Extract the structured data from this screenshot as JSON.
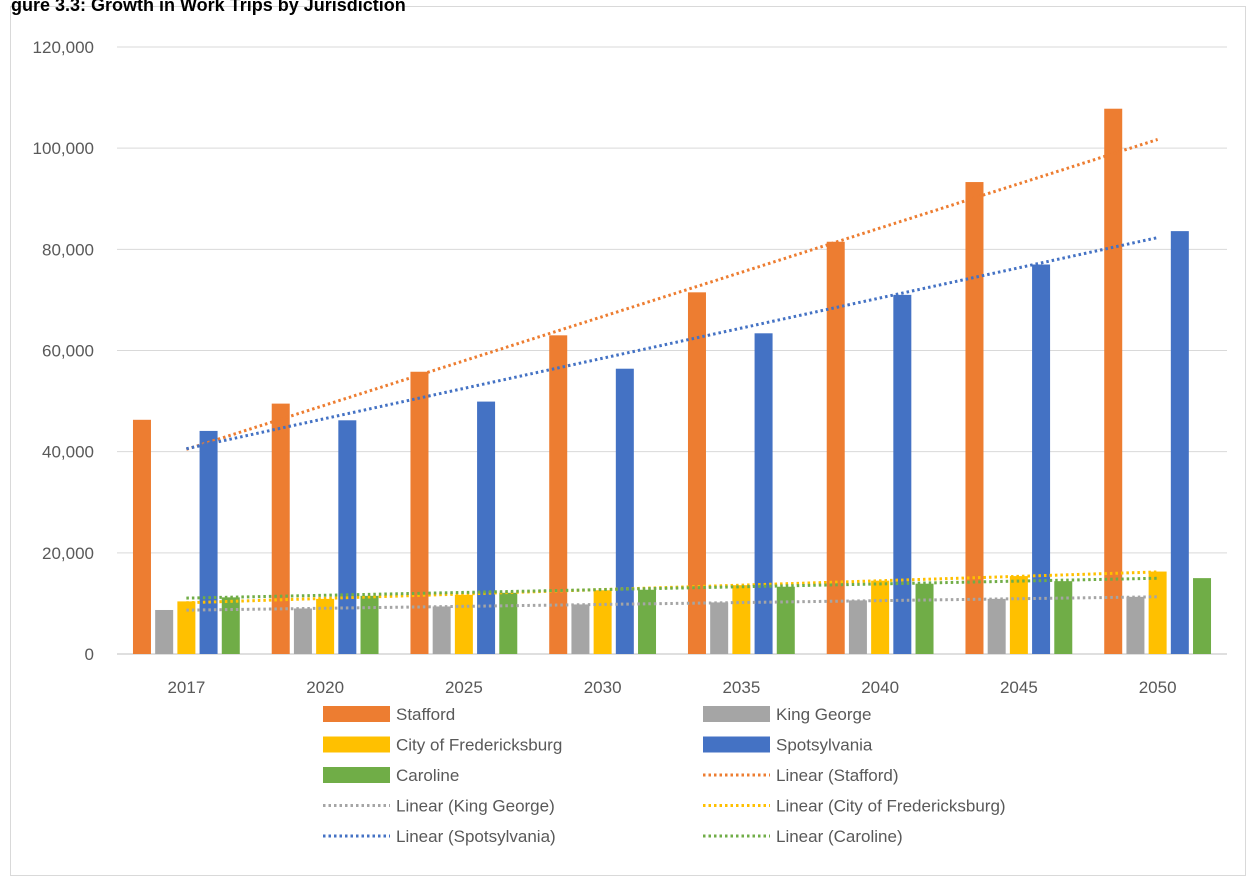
{
  "title": "gure 3.3: Growth in Work Trips by Jurisdiction",
  "chart_data": {
    "type": "bar",
    "title": "gure 3.3: Growth in Work Trips by Jurisdiction",
    "xlabel": "",
    "ylabel": "",
    "ylim": [
      0,
      120000
    ],
    "yticks": [
      "0",
      "20,000",
      "40,000",
      "60,000",
      "80,000",
      "100,000",
      "120,000"
    ],
    "grid": true,
    "legend_position": "bottom",
    "categories": [
      "2017",
      "2020",
      "2025",
      "2030",
      "2035",
      "2040",
      "2045",
      "2050"
    ],
    "series": [
      {
        "name": "Stafford",
        "color": "#ED7D31",
        "values": [
          46300,
          49500,
          55800,
          63000,
          71500,
          81500,
          93300,
          107800
        ]
      },
      {
        "name": "King George",
        "color": "#A5A5A5",
        "values": [
          8700,
          9000,
          9400,
          9800,
          10200,
          10600,
          10900,
          11300
        ]
      },
      {
        "name": "City of Fredericksburg",
        "color": "#FFC000",
        "values": [
          10400,
          10900,
          11700,
          12600,
          13600,
          14500,
          15400,
          16300
        ]
      },
      {
        "name": "Spotsylvania",
        "color": "#4472C4",
        "values": [
          44100,
          46200,
          49900,
          56400,
          63400,
          71000,
          77000,
          83600
        ]
      },
      {
        "name": "Caroline",
        "color": "#70AD47",
        "values": [
          11200,
          11500,
          12100,
          12700,
          13300,
          13900,
          14400,
          15000
        ]
      }
    ],
    "trendlines": [
      {
        "name": "Linear (Stafford)",
        "series": "Stafford",
        "color": "#ED7D31"
      },
      {
        "name": "Linear (King George)",
        "series": "King George",
        "color": "#A5A5A5"
      },
      {
        "name": "Linear (City of Fredericksburg)",
        "series": "City of Fredericksburg",
        "color": "#FFC000"
      },
      {
        "name": "Linear (Spotsylvania)",
        "series": "Spotsylvania",
        "color": "#4472C4"
      },
      {
        "name": "Linear (Caroline)",
        "series": "Caroline",
        "color": "#70AD47"
      }
    ]
  }
}
